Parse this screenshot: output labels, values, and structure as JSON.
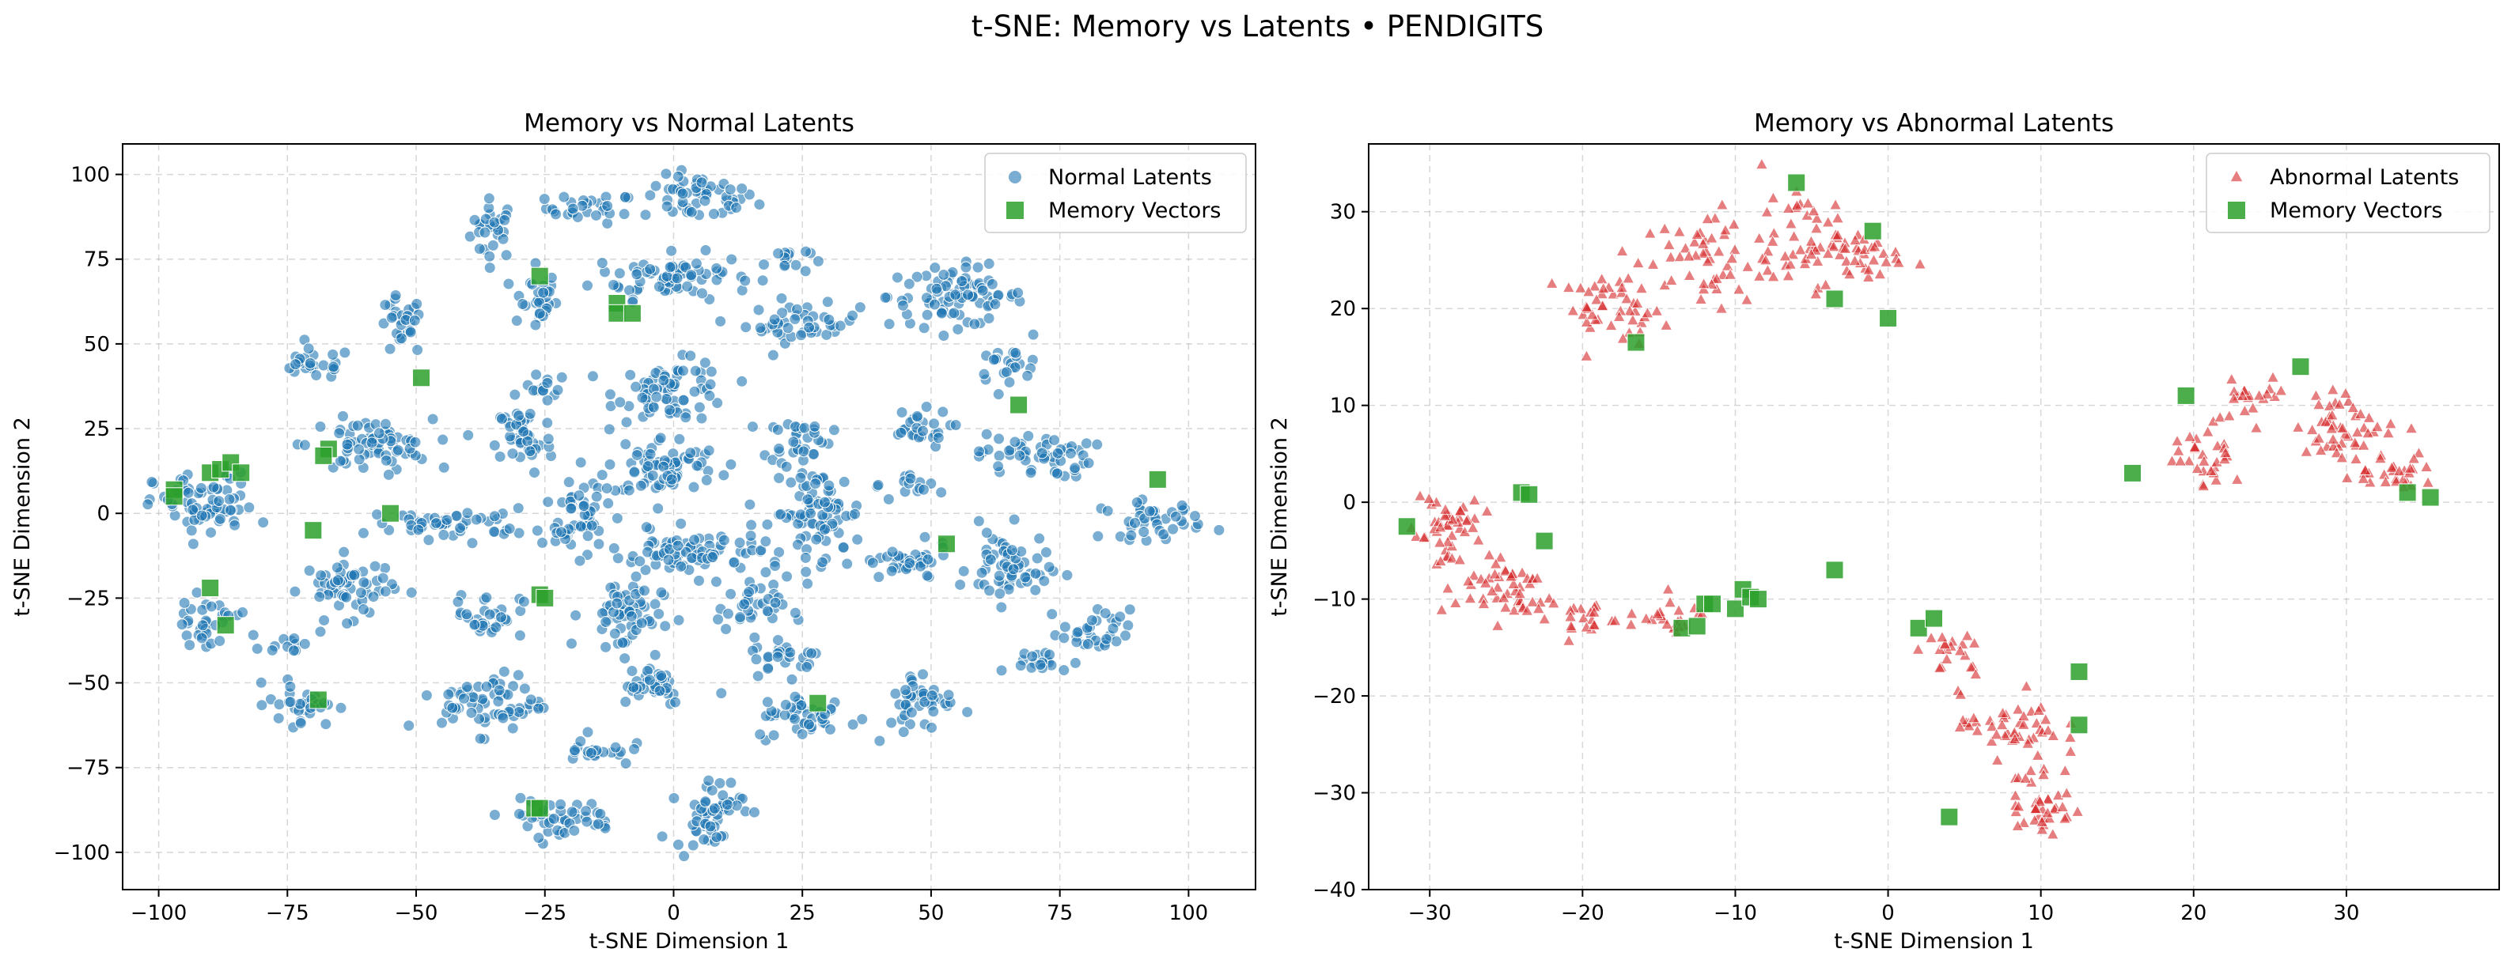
{
  "figure": {
    "title": "t-SNE: Memory vs Latents • PENDIGITS"
  },
  "colors": {
    "normal": "#1f77b4",
    "abnormal": "#d62728",
    "memory": "#2ca02c",
    "grid": "#b0b0b0"
  },
  "chart_data": [
    {
      "type": "scatter",
      "title": "Memory vs Normal Latents",
      "xlabel": "t-SNE Dimension 1",
      "ylabel": "t-SNE Dimension 2",
      "xlim": [
        -107,
        113
      ],
      "ylim": [
        -111,
        109
      ],
      "xticks": [
        -100,
        -75,
        -50,
        -25,
        0,
        25,
        50,
        75,
        100
      ],
      "yticks": [
        -100,
        -75,
        -50,
        -25,
        0,
        25,
        50,
        75,
        100
      ],
      "grid": true,
      "legend_position": "top-right",
      "latent_marker": "circle",
      "legend": [
        "Normal Latents",
        "Memory Vectors"
      ],
      "clusters": [
        {
          "cx": -35,
          "cy": 84,
          "rx": 4,
          "ry": 8
        },
        {
          "cx": -16,
          "cy": 90,
          "rx": 8,
          "ry": 4
        },
        {
          "cx": 5,
          "cy": 93,
          "rx": 10,
          "ry": 6
        },
        {
          "cx": -27,
          "cy": 63,
          "rx": 4,
          "ry": 8
        },
        {
          "cx": 0,
          "cy": 70,
          "rx": 14,
          "ry": 6
        },
        {
          "cx": 22,
          "cy": 75,
          "rx": 4,
          "ry": 4
        },
        {
          "cx": 25,
          "cy": 56,
          "rx": 10,
          "ry": 5
        },
        {
          "cx": 55,
          "cy": 64,
          "rx": 12,
          "ry": 8
        },
        {
          "cx": -70,
          "cy": 44,
          "rx": 7,
          "ry": 4
        },
        {
          "cx": -53,
          "cy": 55,
          "rx": 4,
          "ry": 8
        },
        {
          "cx": -25,
          "cy": 37,
          "rx": 4,
          "ry": 4
        },
        {
          "cx": 0,
          "cy": 36,
          "rx": 10,
          "ry": 8
        },
        {
          "cx": 65,
          "cy": 44,
          "rx": 6,
          "ry": 4
        },
        {
          "cx": -59,
          "cy": 20,
          "rx": 11,
          "ry": 7
        },
        {
          "cx": -29,
          "cy": 22,
          "rx": 5,
          "ry": 10
        },
        {
          "cx": -2,
          "cy": 14,
          "rx": 10,
          "ry": 8
        },
        {
          "cx": 24,
          "cy": 22,
          "rx": 6,
          "ry": 6
        },
        {
          "cx": 47,
          "cy": 25,
          "rx": 6,
          "ry": 5
        },
        {
          "cx": 70,
          "cy": 17,
          "rx": 10,
          "ry": 6
        },
        {
          "cx": -91,
          "cy": 2,
          "rx": 9,
          "ry": 9
        },
        {
          "cx": -43,
          "cy": -3,
          "rx": 14,
          "ry": 4
        },
        {
          "cx": -18,
          "cy": 2,
          "rx": 6,
          "ry": 6
        },
        {
          "cx": 28,
          "cy": 0,
          "rx": 8,
          "ry": 12
        },
        {
          "cx": 48,
          "cy": 8,
          "rx": 4,
          "ry": 4
        },
        {
          "cx": 93,
          "cy": -2,
          "rx": 9,
          "ry": 5
        },
        {
          "cx": -63,
          "cy": -22,
          "rx": 8,
          "ry": 8
        },
        {
          "cx": -20,
          "cy": -6,
          "rx": 5,
          "ry": 4
        },
        {
          "cx": 5,
          "cy": -12,
          "rx": 16,
          "ry": 6
        },
        {
          "cx": 45,
          "cy": -15,
          "rx": 8,
          "ry": 5
        },
        {
          "cx": 65,
          "cy": -16,
          "rx": 7,
          "ry": 10
        },
        {
          "cx": -91,
          "cy": -32,
          "rx": 6,
          "ry": 6
        },
        {
          "cx": -75,
          "cy": -38,
          "rx": 4,
          "ry": 3
        },
        {
          "cx": -36,
          "cy": -30,
          "rx": 6,
          "ry": 6
        },
        {
          "cx": -10,
          "cy": -30,
          "rx": 7,
          "ry": 10
        },
        {
          "cx": 15,
          "cy": -28,
          "rx": 6,
          "ry": 6
        },
        {
          "cx": 82,
          "cy": -35,
          "rx": 6,
          "ry": 6
        },
        {
          "cx": 70,
          "cy": -44,
          "rx": 7,
          "ry": 3
        },
        {
          "cx": -72,
          "cy": -56,
          "rx": 6,
          "ry": 6
        },
        {
          "cx": -35,
          "cy": -56,
          "rx": 9,
          "ry": 8
        },
        {
          "cx": -5,
          "cy": -50,
          "rx": 7,
          "ry": 6
        },
        {
          "cx": 22,
          "cy": -42,
          "rx": 6,
          "ry": 5
        },
        {
          "cx": 26,
          "cy": -60,
          "rx": 9,
          "ry": 6
        },
        {
          "cx": 48,
          "cy": -55,
          "rx": 6,
          "ry": 8
        },
        {
          "cx": -15,
          "cy": -70,
          "rx": 6,
          "ry": 4
        },
        {
          "cx": -22,
          "cy": -90,
          "rx": 10,
          "ry": 5
        },
        {
          "cx": 7,
          "cy": -88,
          "rx": 6,
          "ry": 10
        }
      ],
      "memory": [
        [
          -97,
          7
        ],
        [
          -97,
          5
        ],
        [
          -90,
          12
        ],
        [
          -88,
          13
        ],
        [
          -86,
          15
        ],
        [
          -84,
          12
        ],
        [
          -90,
          -22
        ],
        [
          -87,
          -33
        ],
        [
          -67,
          19
        ],
        [
          -68,
          17
        ],
        [
          -70,
          -5
        ],
        [
          -69,
          -55
        ],
        [
          -49,
          40
        ],
        [
          -55,
          0
        ],
        [
          -26,
          70
        ],
        [
          -11,
          62
        ],
        [
          -11,
          59
        ],
        [
          -8,
          59
        ],
        [
          -26,
          -24
        ],
        [
          -25,
          -25
        ],
        [
          -27,
          -87
        ],
        [
          -26,
          -87
        ],
        [
          28,
          -56
        ],
        [
          53,
          -9
        ],
        [
          67,
          32
        ],
        [
          94,
          10
        ]
      ]
    },
    {
      "type": "scatter",
      "title": "Memory vs Abnormal Latents",
      "xlabel": "t-SNE Dimension 1",
      "ylabel": "t-SNE Dimension 2",
      "xlim": [
        -34,
        40
      ],
      "ylim": [
        -40,
        37
      ],
      "xticks": [
        -30,
        -20,
        -10,
        0,
        10,
        20,
        30
      ],
      "yticks": [
        -40,
        -30,
        -20,
        -10,
        0,
        10,
        20,
        30
      ],
      "grid": true,
      "legend_position": "top-right",
      "latent_marker": "triangle",
      "legend": [
        "Abnormal Latents",
        "Memory Vectors"
      ],
      "clusters": [
        {
          "cx": -18,
          "cy": 20,
          "rx": 3,
          "ry": 3
        },
        {
          "cx": -12,
          "cy": 25,
          "rx": 4,
          "ry": 5
        },
        {
          "cx": -5,
          "cy": 27,
          "rx": 3,
          "ry": 4
        },
        {
          "cx": -1,
          "cy": 25,
          "rx": 2,
          "ry": 2
        },
        {
          "cx": -29,
          "cy": -3,
          "rx": 2,
          "ry": 5
        },
        {
          "cx": -25,
          "cy": -9,
          "rx": 3,
          "ry": 3
        },
        {
          "cx": -20,
          "cy": -12,
          "rx": 2,
          "ry": 2
        },
        {
          "cx": -15,
          "cy": -12,
          "rx": 3,
          "ry": 1.5
        },
        {
          "cx": 4,
          "cy": -16,
          "rx": 2,
          "ry": 2
        },
        {
          "cx": 8,
          "cy": -23,
          "rx": 3,
          "ry": 3
        },
        {
          "cx": 10,
          "cy": -31,
          "rx": 2,
          "ry": 4
        },
        {
          "cx": 21,
          "cy": 5,
          "rx": 2,
          "ry": 3
        },
        {
          "cx": 24,
          "cy": 11,
          "rx": 2,
          "ry": 2
        },
        {
          "cx": 30,
          "cy": 8,
          "rx": 3,
          "ry": 3
        },
        {
          "cx": 33,
          "cy": 3,
          "rx": 3,
          "ry": 2
        }
      ],
      "memory": [
        [
          -31.5,
          -2.5
        ],
        [
          -24,
          1
        ],
        [
          -23.5,
          0.8
        ],
        [
          -22.5,
          -4
        ],
        [
          -16.5,
          16.5
        ],
        [
          -13.5,
          -13
        ],
        [
          -12.5,
          -12.8
        ],
        [
          -12,
          -10.5
        ],
        [
          -11.5,
          -10.5
        ],
        [
          -10,
          -11
        ],
        [
          -9.5,
          -9
        ],
        [
          -9,
          -9.8
        ],
        [
          -8.5,
          -10
        ],
        [
          -6,
          33
        ],
        [
          -3.5,
          21
        ],
        [
          -3.5,
          -7
        ],
        [
          -1,
          28
        ],
        [
          0,
          19
        ],
        [
          2,
          -13
        ],
        [
          3,
          -12
        ],
        [
          4,
          -32.5
        ],
        [
          12.5,
          -17.5
        ],
        [
          12.5,
          -23
        ],
        [
          16,
          3
        ],
        [
          19.5,
          11
        ],
        [
          27,
          14
        ],
        [
          34,
          1
        ],
        [
          35.5,
          0.5
        ]
      ]
    }
  ]
}
